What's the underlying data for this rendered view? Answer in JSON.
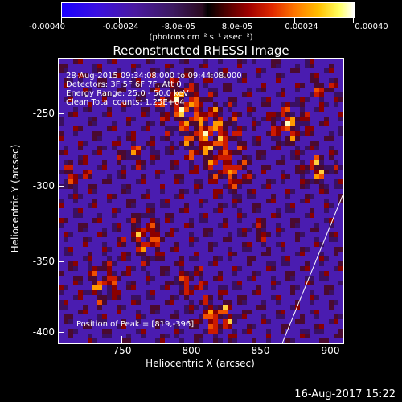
{
  "colorbar": {
    "ticks": [
      "-0.00040",
      "-0.00024",
      "-8.0e-05",
      "8.0e-05",
      "0.00024",
      "0.00040"
    ],
    "units": "(photons cm⁻² s⁻¹ asec⁻²)"
  },
  "title": "Reconstructed RHESSI Image",
  "info": {
    "time": "28-Aug-2015 09:34:08.000 to 09:44:08.000",
    "detectors": "Detectors: 3F 5F 6F 7F, Att 0",
    "energy": "Energy Range: 25.0 - 50.0 keV",
    "clean": "Clean     Total counts: 1.25E+04",
    "peak": "Position of Peak = [819,-396]"
  },
  "axes": {
    "xlabel": "Heliocentric X (arcsec)",
    "ylabel": "Heliocentric Y (arcsec)",
    "xticks": [
      "750",
      "800",
      "850",
      "900"
    ],
    "yticks": [
      "-250",
      "-300",
      "-350",
      "-400"
    ]
  },
  "timestamp": "16-Aug-2017 15:22"
}
